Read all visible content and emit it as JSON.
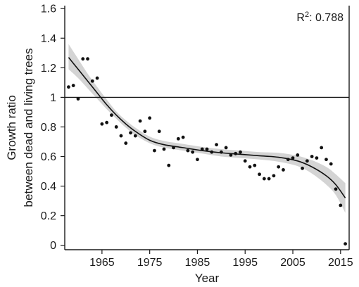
{
  "chart_data": {
    "type": "scatter",
    "title": "",
    "xlabel": "Year",
    "ylabel_lines": [
      "Growth ratio",
      "between dead and living trees"
    ],
    "annotation": {
      "prefix": "R",
      "superscript": "2",
      "suffix": ": 0.788"
    },
    "xlim": [
      1957.2,
      2016.8
    ],
    "ylim": [
      -0.03,
      1.62
    ],
    "x_ticks": [
      1965,
      1975,
      1985,
      1995,
      2005,
      2015
    ],
    "x_tick_labels": [
      "1965",
      "1975",
      "1985",
      "1995",
      "2005",
      "2015"
    ],
    "y_ticks": [
      0,
      0.2,
      0.4,
      0.6,
      0.8,
      1,
      1.2,
      1.4,
      1.6
    ],
    "y_tick_labels": [
      "0",
      "0.2",
      "0.4",
      "0.6",
      "0.8",
      "1",
      "1.2",
      "1.4",
      "1.6"
    ],
    "reference_line": {
      "y": 1.0
    },
    "grid": false,
    "points": [
      {
        "x": 1958,
        "y": 1.07
      },
      {
        "x": 1959,
        "y": 1.08
      },
      {
        "x": 1960,
        "y": 0.99
      },
      {
        "x": 1961,
        "y": 1.26
      },
      {
        "x": 1962,
        "y": 1.26
      },
      {
        "x": 1963,
        "y": 1.11
      },
      {
        "x": 1964,
        "y": 1.13
      },
      {
        "x": 1965,
        "y": 0.82
      },
      {
        "x": 1966,
        "y": 0.83
      },
      {
        "x": 1967,
        "y": 0.88
      },
      {
        "x": 1968,
        "y": 0.8
      },
      {
        "x": 1969,
        "y": 0.74
      },
      {
        "x": 1970,
        "y": 0.69
      },
      {
        "x": 1971,
        "y": 0.76
      },
      {
        "x": 1972,
        "y": 0.74
      },
      {
        "x": 1973,
        "y": 0.84
      },
      {
        "x": 1974,
        "y": 0.77
      },
      {
        "x": 1975,
        "y": 0.86
      },
      {
        "x": 1976,
        "y": 0.64
      },
      {
        "x": 1977,
        "y": 0.77
      },
      {
        "x": 1978,
        "y": 0.65
      },
      {
        "x": 1979,
        "y": 0.54
      },
      {
        "x": 1980,
        "y": 0.66
      },
      {
        "x": 1981,
        "y": 0.72
      },
      {
        "x": 1982,
        "y": 0.73
      },
      {
        "x": 1983,
        "y": 0.64
      },
      {
        "x": 1984,
        "y": 0.63
      },
      {
        "x": 1985,
        "y": 0.58
      },
      {
        "x": 1986,
        "y": 0.65
      },
      {
        "x": 1987,
        "y": 0.65
      },
      {
        "x": 1988,
        "y": 0.63
      },
      {
        "x": 1989,
        "y": 0.68
      },
      {
        "x": 1990,
        "y": 0.63
      },
      {
        "x": 1991,
        "y": 0.66
      },
      {
        "x": 1992,
        "y": 0.61
      },
      {
        "x": 1993,
        "y": 0.62
      },
      {
        "x": 1994,
        "y": 0.63
      },
      {
        "x": 1995,
        "y": 0.57
      },
      {
        "x": 1996,
        "y": 0.53
      },
      {
        "x": 1997,
        "y": 0.54
      },
      {
        "x": 1998,
        "y": 0.48
      },
      {
        "x": 1999,
        "y": 0.45
      },
      {
        "x": 2000,
        "y": 0.45
      },
      {
        "x": 2001,
        "y": 0.47
      },
      {
        "x": 2002,
        "y": 0.53
      },
      {
        "x": 2003,
        "y": 0.51
      },
      {
        "x": 2004,
        "y": 0.58
      },
      {
        "x": 2005,
        "y": 0.59
      },
      {
        "x": 2006,
        "y": 0.61
      },
      {
        "x": 2007,
        "y": 0.52
      },
      {
        "x": 2008,
        "y": 0.57
      },
      {
        "x": 2009,
        "y": 0.6
      },
      {
        "x": 2010,
        "y": 0.59
      },
      {
        "x": 2011,
        "y": 0.66
      },
      {
        "x": 2012,
        "y": 0.58
      },
      {
        "x": 2013,
        "y": 0.55
      },
      {
        "x": 2014,
        "y": 0.38
      },
      {
        "x": 2015,
        "y": 0.27
      },
      {
        "x": 2016,
        "y": 0.01
      }
    ],
    "fit_line": {
      "x": [
        1958,
        1960,
        1962,
        1964,
        1966,
        1968,
        1970,
        1972,
        1975,
        1978,
        1982,
        1986,
        1990,
        1994,
        1998,
        2002,
        2006,
        2009,
        2012,
        2014,
        2016
      ],
      "y": [
        1.27,
        1.19,
        1.11,
        1.03,
        0.95,
        0.88,
        0.82,
        0.77,
        0.71,
        0.68,
        0.66,
        0.64,
        0.625,
        0.615,
        0.605,
        0.595,
        0.57,
        0.53,
        0.47,
        0.41,
        0.32
      ]
    },
    "confidence_band": {
      "x": [
        1958,
        1960,
        1962,
        1964,
        1966,
        1968,
        1970,
        1972,
        1975,
        1978,
        1982,
        1986,
        1990,
        1994,
        1998,
        2002,
        2006,
        2009,
        2012,
        2014,
        2016
      ],
      "lower": [
        1.19,
        1.13,
        1.06,
        0.99,
        0.92,
        0.855,
        0.795,
        0.745,
        0.69,
        0.66,
        0.64,
        0.62,
        0.6,
        0.59,
        0.58,
        0.565,
        0.535,
        0.485,
        0.41,
        0.34,
        0.22
      ],
      "upper": [
        1.36,
        1.26,
        1.16,
        1.07,
        0.985,
        0.905,
        0.845,
        0.795,
        0.735,
        0.705,
        0.685,
        0.665,
        0.65,
        0.64,
        0.63,
        0.625,
        0.605,
        0.575,
        0.53,
        0.48,
        0.42
      ]
    },
    "colors": {
      "points": "#111111",
      "fit_line": "#111111",
      "band": "#d4d4d4",
      "axes": "#1a1a1a"
    }
  }
}
